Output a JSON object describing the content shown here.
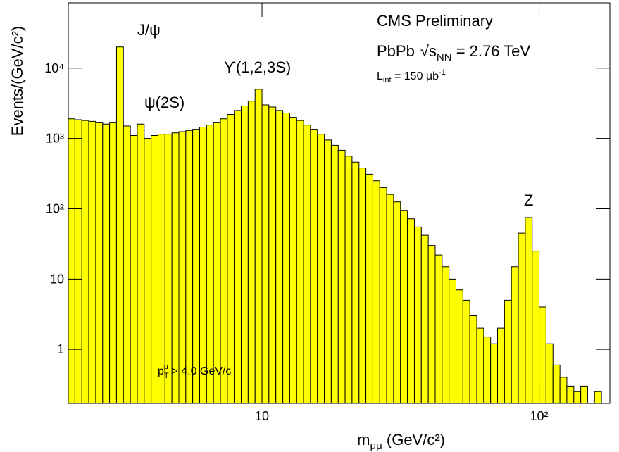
{
  "chart_data": {
    "type": "histogram",
    "annotations": {
      "experiment": "CMS Preliminary",
      "system": {
        "beam": "PbPb",
        "root": "√s",
        "sub": "NN",
        "rest": " = 2.76 TeV"
      },
      "lumi": {
        "main": "L",
        "sub": "int",
        "rest": " = 150 μb",
        "sup": "-1"
      },
      "cut": {
        "main": "p",
        "sub": "T",
        "sup": "μ",
        "rest": " > 4.0 GeV/c"
      },
      "peaks": [
        "J/ψ",
        "ψ(2S)",
        "ϒ(1,2,3S)",
        "Z"
      ]
    },
    "x_label": {
      "main": "m",
      "sub": "μμ",
      "rest": " (GeV/c²)"
    },
    "y_label": "Events/(GeV/c²)",
    "xscale": "log",
    "yscale": "log",
    "xlim": [
      2,
      180
    ],
    "ylim": [
      0.17,
      85000
    ],
    "xticks": [
      10,
      {
        "value": 100,
        "label": "10²"
      }
    ],
    "yticks": [
      1,
      10,
      {
        "value": 100,
        "label": "10²"
      },
      {
        "value": 1000,
        "label": "10³"
      },
      {
        "value": 10000,
        "label": "10⁴"
      }
    ],
    "color": "#ffff00",
    "edgecolor": "#000000",
    "bins": [
      1.995,
      2.113,
      2.239,
      2.371,
      2.512,
      2.661,
      2.818,
      2.985,
      3.162,
      3.35,
      3.548,
      3.758,
      3.981,
      4.217,
      4.467,
      4.732,
      5.012,
      5.309,
      5.623,
      5.957,
      6.31,
      6.683,
      7.079,
      7.499,
      7.943,
      8.414,
      8.913,
      9.441,
      10,
      10.59,
      11.22,
      11.89,
      12.59,
      13.34,
      14.13,
      14.96,
      15.85,
      16.79,
      17.78,
      18.84,
      19.95,
      21.13,
      22.39,
      23.71,
      25.12,
      26.61,
      28.18,
      29.85,
      31.62,
      33.5,
      35.48,
      37.58,
      39.81,
      42.17,
      44.67,
      47.32,
      50.12,
      53.09,
      56.23,
      59.57,
      63.1,
      66.83,
      70.79,
      74.99,
      79.43,
      84.14,
      89.13,
      94.41,
      100,
      105.9,
      112.2,
      118.9,
      125.9,
      133.4,
      141.3,
      149.6,
      158.5,
      167.9,
      177.8
    ],
    "values": [
      1900,
      1850,
      1800,
      1750,
      1700,
      1600,
      1700,
      20000,
      1500,
      1100,
      1600,
      1000,
      1100,
      1150,
      1150,
      1200,
      1250,
      1300,
      1350,
      1450,
      1550,
      1700,
      1900,
      2200,
      2500,
      2900,
      3400,
      5000,
      3000,
      2800,
      2500,
      2300,
      2000,
      1800,
      1550,
      1350,
      1150,
      950,
      800,
      680,
      560,
      460,
      380,
      310,
      250,
      200,
      160,
      125,
      95,
      72,
      55,
      42,
      30,
      22,
      15,
      10,
      7,
      5,
      3,
      2,
      1.5,
      1.2,
      2,
      5,
      15,
      45,
      75,
      25,
      4,
      1.2,
      0.6,
      0.4,
      0.3,
      0.25,
      0.3,
      0,
      0.25,
      0
    ]
  }
}
